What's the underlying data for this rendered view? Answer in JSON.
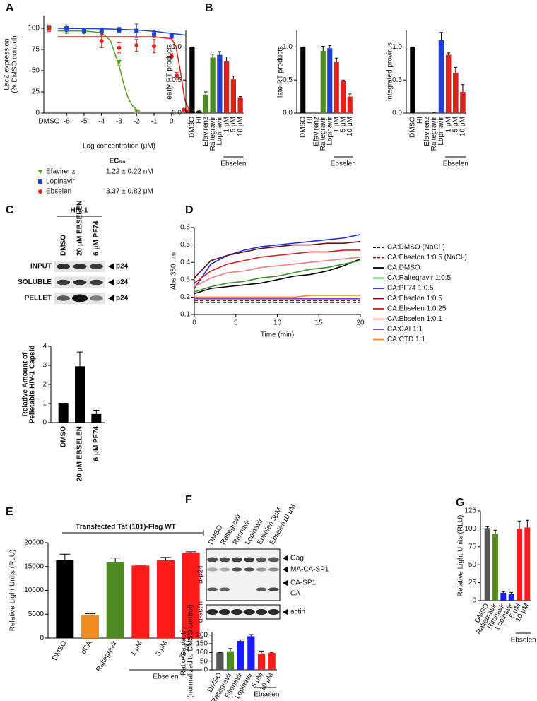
{
  "chart_data": [
    {
      "panel": "A",
      "type": "scatter",
      "ylabel": [
        "LacZ expression",
        "(% DMSO control)"
      ],
      "xlabel": "Log concentration (μM)",
      "xlim": [
        -7.3,
        1.3
      ],
      "xticks": [
        {
          "value": -7,
          "label": "DMSO"
        },
        -6,
        -5,
        -4,
        -3,
        -2,
        -1,
        0,
        1
      ],
      "ylim": [
        0,
        115
      ],
      "yticks": [
        0,
        25,
        50,
        75,
        100
      ],
      "legend_title": "EC₅₀",
      "series": [
        {
          "name": "Efavirenz",
          "ec50": "1.22 ± 0.22 nM",
          "color": "#5b9a2a",
          "marker": "triangle",
          "x": [
            -7,
            -6,
            -5,
            -4,
            -3,
            -2
          ],
          "values": [
            100,
            97,
            96,
            94,
            60,
            2
          ],
          "errors": [
            3,
            3,
            4,
            3,
            4,
            2
          ],
          "fit": {
            "x": [
              -6.5,
              -5,
              -4,
              -3.5,
              -3,
              -2.75,
              -2.5,
              -2.25,
              -2,
              -1.8
            ],
            "values": [
              97,
              96.9,
              94.8,
              85.8,
              56,
              35.4,
              18.9,
              9,
              4,
              1.9
            ]
          }
        },
        {
          "name": "Lopinavir",
          "ec50": "",
          "color": "#1f3fd6",
          "marker": "square",
          "x": [
            -7,
            -6,
            -5,
            -4,
            -3,
            -2,
            -1,
            0
          ],
          "values": [
            100,
            100,
            97,
            97,
            98,
            97,
            93,
            91
          ],
          "errors": [
            2,
            4,
            3,
            3,
            3,
            8,
            4,
            3
          ],
          "fit": {
            "x": [
              -6.5,
              -4,
              -2,
              -1,
              0,
              0.8
            ],
            "values": [
              100,
              99.5,
              98,
              96.5,
              94,
              92
            ]
          }
        },
        {
          "name": "Ebselen",
          "ec50": "3.37 ± 0.82 μM",
          "color": "#e0201a",
          "marker": "circle",
          "x": [
            -7,
            -4,
            -3,
            -2,
            -1,
            0,
            0.3,
            0.7,
            0.9
          ],
          "values": [
            100,
            85,
            77,
            80,
            79,
            67,
            44,
            4,
            2
          ],
          "errors": [
            4,
            8,
            6,
            7,
            8,
            3,
            4,
            1,
            1
          ],
          "fit": {
            "x": [
              -6.5,
              -2,
              -1,
              0,
              0.25,
              0.5,
              0.75,
              1,
              1.2
            ],
            "values": [
              90,
              90,
              90,
              87.7,
              78.6,
              49.7,
              16.2,
              3.4,
              0.9
            ]
          }
        }
      ]
    },
    {
      "panel": "B",
      "type": "bar",
      "ylabel": [
        "early RT products"
      ],
      "ylim": [
        0,
        1.25
      ],
      "yticks": [
        {
          "value": 0,
          "label": "0.0"
        },
        {
          "value": 0.5,
          "label": "0.5"
        },
        {
          "value": 1,
          "label": "1.0"
        }
      ],
      "categories": [
        "DMSO",
        "HI",
        "Efavirenz",
        "Raltegravir",
        "Lopinavir",
        "1 μM",
        "5 μM",
        "10 μM"
      ],
      "category_groups": [
        null,
        null,
        null,
        null,
        null,
        "Ebselen",
        "Ebselen",
        "Ebselen"
      ],
      "colors": [
        "#000000",
        "#000000",
        "#4f8a22",
        "#4f8a22",
        "#1f3fd6",
        "#e0201a",
        "#e0201a",
        "#e0201a"
      ],
      "values": [
        1.0,
        0.03,
        0.28,
        0.84,
        0.88,
        0.78,
        0.51,
        0.24
      ],
      "errors": [
        0,
        0.01,
        0.04,
        0.05,
        0.05,
        0.07,
        0.05,
        0.01
      ]
    },
    {
      "type": "bar",
      "ylabel": [
        "late RT products"
      ],
      "ylim": [
        0,
        1.25
      ],
      "yticks": [
        {
          "value": 0,
          "label": "0.0"
        },
        {
          "value": 0.5,
          "label": "0.5"
        },
        {
          "value": 1,
          "label": "1.0"
        }
      ],
      "categories": [
        "DMSO",
        "HI",
        "Efavirenz",
        "Raltegravir",
        "Lopinavir",
        "1 μM",
        "5 μM",
        "10 μM"
      ],
      "category_groups": [
        null,
        null,
        null,
        null,
        null,
        "Ebselen",
        "Ebselen",
        "Ebselen"
      ],
      "colors": [
        "#000000",
        "#000000",
        "#4f8a22",
        "#4f8a22",
        "#1f3fd6",
        "#e0201a",
        "#e0201a",
        "#e0201a"
      ],
      "values": [
        1.0,
        0,
        0,
        0.94,
        0.98,
        0.77,
        0.49,
        0.25
      ],
      "errors": [
        0,
        0,
        0,
        0.07,
        0.04,
        0.06,
        0.01,
        0.04
      ]
    },
    {
      "type": "bar",
      "ylabel": [
        "integrated provirus"
      ],
      "ylim": [
        0,
        1.25
      ],
      "yticks": [
        {
          "value": 0,
          "label": "0.0"
        },
        {
          "value": 0.5,
          "label": "0.5"
        },
        {
          "value": 1,
          "label": "1.0"
        }
      ],
      "categories": [
        "DMSO",
        "HI",
        "Efavirenz",
        "Raltegravir",
        "Lopinavir",
        "1 μM",
        "5 μM",
        "10 μM"
      ],
      "category_groups": [
        null,
        null,
        null,
        null,
        null,
        "Ebselen",
        "Ebselen",
        "Ebselen"
      ],
      "colors": [
        "#000000",
        "#000000",
        "#4f8a22",
        "#4f8a22",
        "#1f3fd6",
        "#e0201a",
        "#e0201a",
        "#e0201a"
      ],
      "values": [
        1.0,
        0,
        0,
        0.01,
        1.1,
        0.88,
        0.61,
        0.32
      ],
      "errors": [
        0,
        0,
        0,
        0,
        0.12,
        0.03,
        0.08,
        0.11
      ]
    },
    {
      "panel": "C",
      "type": "bar",
      "ylabel": [
        "Relative Amount of",
        "Pelletable HIV-1 Capsid"
      ],
      "ylim": [
        0,
        4
      ],
      "yticks": [
        0,
        1,
        2,
        3,
        4
      ],
      "categories": [
        "DMSO",
        "20 μM EBSELEN",
        "6 μM PF74"
      ],
      "colors": [
        "#000000",
        "#000000",
        "#000000"
      ],
      "values": [
        1,
        2.95,
        0.45
      ],
      "errors": [
        0,
        0.75,
        0.2
      ],
      "blot": {
        "title": "HIV-1",
        "lanes": [
          "DMSO",
          "20 μM EBSELEN",
          "6 μM PF74"
        ],
        "rows": [
          "INPUT",
          "SOLUBLE",
          "PELLET"
        ],
        "row_bands": [
          "p24",
          "p24",
          "p24"
        ]
      }
    },
    {
      "panel": "D",
      "type": "line",
      "ylabel": [
        "Abs 350 nm"
      ],
      "xlabel": "Time (min)",
      "xlim": [
        0,
        20
      ],
      "xticks": [
        0,
        5,
        10,
        15,
        20
      ],
      "ylim": [
        0.1,
        0.6
      ],
      "yticks": [
        0.1,
        0.2,
        0.3,
        0.4,
        0.5,
        0.6
      ],
      "x": [
        0,
        2,
        4,
        6,
        8,
        10,
        12,
        14,
        16,
        18,
        20
      ],
      "series": [
        {
          "name": "CA:DMSO (NaCl-)",
          "color": "#000000",
          "line_style": "dashed",
          "values": [
            0.17,
            0.17,
            0.17,
            0.17,
            0.17,
            0.17,
            0.17,
            0.17,
            0.17,
            0.17,
            0.17
          ]
        },
        {
          "name": "CA:Ebselen 1:0.5 (NaCl-)",
          "color": "#7a1010",
          "line_style": "dashed",
          "values": [
            0.18,
            0.18,
            0.18,
            0.18,
            0.18,
            0.18,
            0.18,
            0.18,
            0.18,
            0.18,
            0.18
          ]
        },
        {
          "name": "CA:DMSO",
          "color": "#000000",
          "values": [
            0.22,
            0.25,
            0.26,
            0.27,
            0.28,
            0.3,
            0.32,
            0.33,
            0.35,
            0.38,
            0.42
          ]
        },
        {
          "name": "CA:Raltegravir 1:0.5",
          "color": "#3f8f2a",
          "values": [
            0.23,
            0.26,
            0.28,
            0.29,
            0.31,
            0.32,
            0.34,
            0.36,
            0.37,
            0.39,
            0.41
          ]
        },
        {
          "name": "CA:PF74 1:0.5",
          "color": "#1f2fd6",
          "values": [
            0.25,
            0.39,
            0.44,
            0.47,
            0.49,
            0.5,
            0.51,
            0.52,
            0.53,
            0.54,
            0.56
          ]
        },
        {
          "name": "CA:Ebselen 1:0.5",
          "color": "#6b1212",
          "values": [
            0.31,
            0.41,
            0.44,
            0.46,
            0.48,
            0.49,
            0.5,
            0.5,
            0.51,
            0.51,
            0.52
          ]
        },
        {
          "name": "CA:Ebselen 1:0.25",
          "color": "#d42020",
          "values": [
            0.28,
            0.35,
            0.39,
            0.41,
            0.43,
            0.44,
            0.45,
            0.46,
            0.46,
            0.47,
            0.47
          ]
        },
        {
          "name": "CA:Ebselen 1:0.1",
          "color": "#f08080",
          "values": [
            0.26,
            0.31,
            0.34,
            0.35,
            0.37,
            0.38,
            0.39,
            0.4,
            0.41,
            0.42,
            0.43
          ]
        },
        {
          "name": "CA:CAI 1:1",
          "color": "#7b3fbf",
          "values": [
            0.19,
            0.19,
            0.19,
            0.19,
            0.19,
            0.19,
            0.19,
            0.19,
            0.19,
            0.19,
            0.19
          ]
        },
        {
          "name": "CA:CTD 1:1",
          "color": "#f28c1e",
          "values": [
            0.2,
            0.2,
            0.2,
            0.2,
            0.2,
            0.2,
            0.2,
            0.21,
            0.21,
            0.21,
            0.21
          ]
        }
      ]
    },
    {
      "panel": "E",
      "type": "bar",
      "title": "Transfected Tat (101)-Flag WT",
      "ylabel": [
        "Relative Light Units (RLU)"
      ],
      "ylim": [
        0,
        20000
      ],
      "yticks": [
        0,
        5000,
        10000,
        15000,
        20000
      ],
      "categories": [
        "DMSO",
        "dCA",
        "Raltegravir",
        "1 μM",
        "5 μM",
        "10 μM"
      ],
      "category_groups": [
        null,
        null,
        null,
        "Ebselen",
        "Ebselen",
        "Ebselen"
      ],
      "colors": [
        "#000000",
        "#f28c1e",
        "#4f8a22",
        "#ff1a1a",
        "#ff1a1a",
        "#ff1a1a"
      ],
      "values": [
        16300,
        4800,
        15900,
        15200,
        16300,
        17900
      ],
      "errors": [
        1300,
        300,
        900,
        100,
        600,
        200
      ]
    },
    {
      "panel": "F",
      "type": "bar",
      "ylabel": [
        "Ratio Gag/actin",
        "(normalized to DMSO control)"
      ],
      "ylim": [
        0,
        215
      ],
      "yticks": [
        0,
        50,
        100,
        150,
        200
      ],
      "categories": [
        "DMSO",
        "Raltegravir",
        "Ritonavir",
        "Lopinavir",
        "5 μM",
        "10 μM"
      ],
      "category_groups": [
        null,
        null,
        null,
        null,
        "Ebselen",
        "Ebselen"
      ],
      "colors": [
        "#555555",
        "#4f8a22",
        "#1a1aff",
        "#1a1aff",
        "#ff1a1a",
        "#ff1a1a"
      ],
      "values": [
        100,
        107,
        166,
        193,
        93,
        97
      ],
      "errors": [
        0,
        15,
        7,
        10,
        15,
        4
      ],
      "blot": {
        "lanes": [
          "DMSO",
          "Raltegravir",
          "Ritonavir",
          "Lopinavir",
          "Ebselen 5μM",
          "Ebselen10 μM"
        ],
        "antibodies": [
          "α-p24",
          "α-actin"
        ],
        "bands": [
          "Gag",
          "MA-CA-SP1",
          "CA-SP1",
          "CA",
          "actin"
        ]
      }
    },
    {
      "panel": "G",
      "type": "bar",
      "ylabel": [
        "Relative Light Units (RLU)"
      ],
      "ylim": [
        0,
        125
      ],
      "yticks": [
        0,
        25,
        50,
        75,
        100,
        125
      ],
      "categories": [
        "DMSO",
        "Raltegravir",
        "Ritonavir",
        "Lopinavir",
        "5 μM",
        "10 μM"
      ],
      "category_groups": [
        null,
        null,
        null,
        null,
        "Ebselen",
        "Ebselen"
      ],
      "colors": [
        "#555555",
        "#4f8a22",
        "#1a1aff",
        "#1a1aff",
        "#ff1a1a",
        "#ff1a1a"
      ],
      "values": [
        101,
        93,
        11,
        9,
        100,
        102
      ],
      "errors": [
        2,
        5,
        1.5,
        2.5,
        11,
        10
      ]
    }
  ]
}
